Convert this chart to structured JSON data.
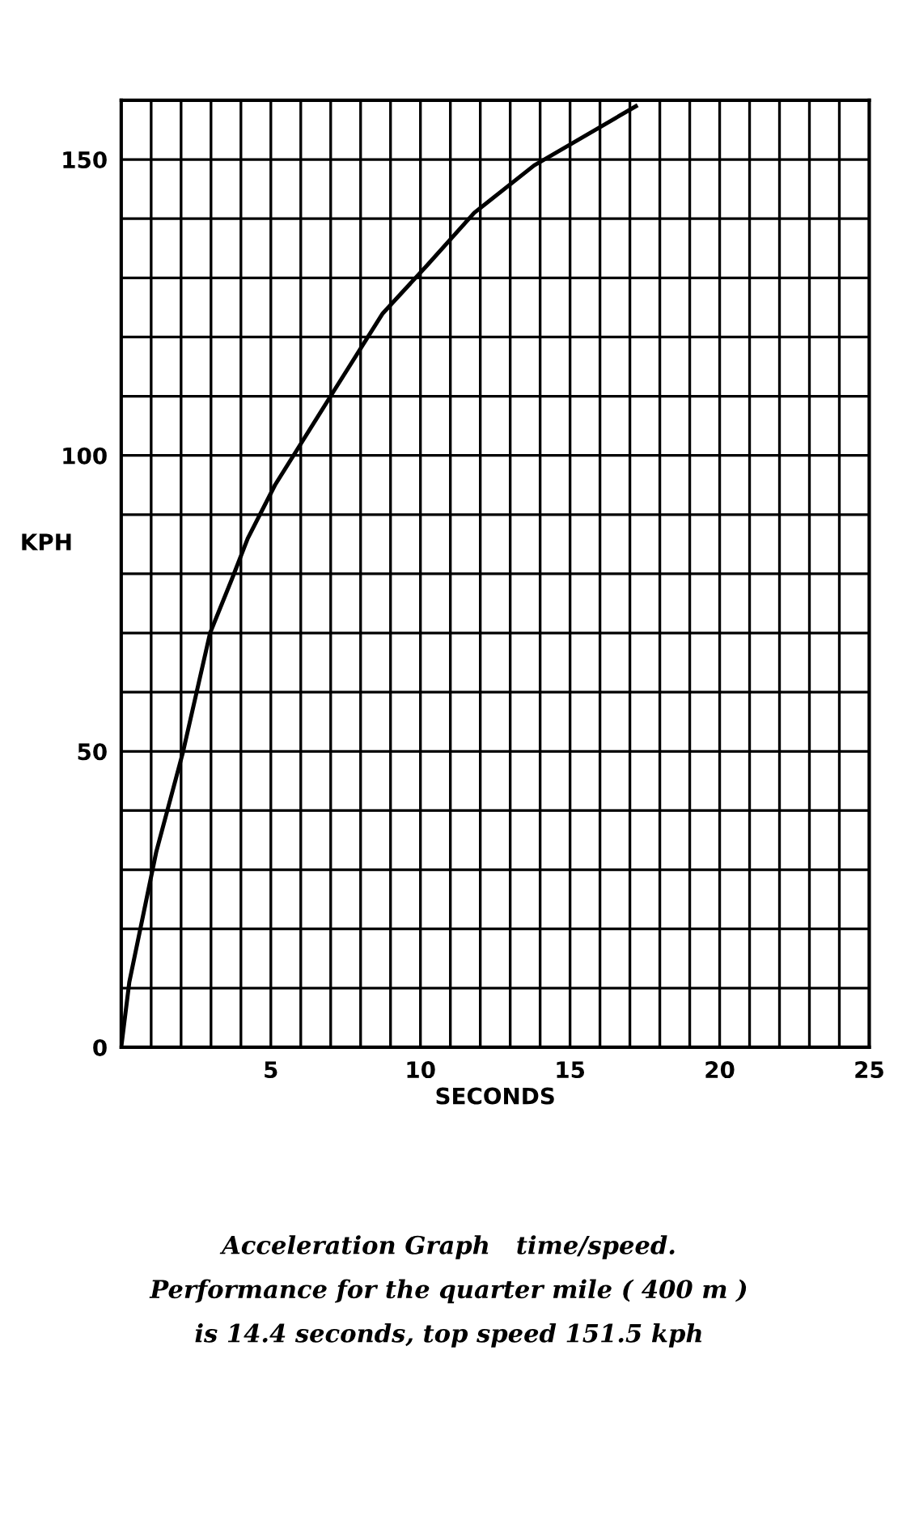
{
  "chart_data": {
    "type": "line",
    "xlabel": "SECONDS",
    "ylabel": "KPH",
    "series": [
      {
        "color": "#000000",
        "x": [
          0,
          0.27,
          1.17,
          2.07,
          2.97,
          3.69,
          4.23,
          5.14,
          7.12,
          8.74,
          10.2,
          11.8,
          13.8,
          15.5,
          17.2
        ],
        "values": [
          0,
          11,
          33,
          50,
          70,
          79,
          86,
          95,
          111,
          124,
          132,
          141,
          149,
          154,
          159
        ]
      }
    ],
    "xlim": [
      0,
      25
    ],
    "ylim": [
      0,
      160
    ],
    "xticks": [
      {
        "value": 1,
        "label": null
      },
      {
        "value": 2,
        "label": null
      },
      {
        "value": 3,
        "label": null
      },
      {
        "value": 4,
        "label": null
      },
      5,
      {
        "value": 6,
        "label": null
      },
      {
        "value": 7,
        "label": null
      },
      {
        "value": 8,
        "label": null
      },
      {
        "value": 9,
        "label": null
      },
      10,
      {
        "value": 11,
        "label": null
      },
      {
        "value": 12,
        "label": null
      },
      {
        "value": 13,
        "label": null
      },
      {
        "value": 14,
        "label": null
      },
      15,
      {
        "value": 16,
        "label": null
      },
      {
        "value": 17,
        "label": null
      },
      {
        "value": 18,
        "label": null
      },
      {
        "value": 19,
        "label": null
      },
      20,
      {
        "value": 21,
        "label": null
      },
      {
        "value": 22,
        "label": null
      },
      {
        "value": 23,
        "label": null
      },
      {
        "value": 24,
        "label": null
      },
      25
    ],
    "yticks": [
      0,
      {
        "value": 10,
        "label": null
      },
      {
        "value": 20,
        "label": null
      },
      {
        "value": 30,
        "label": null
      },
      {
        "value": 40,
        "label": null
      },
      50,
      {
        "value": 60,
        "label": null
      },
      {
        "value": 70,
        "label": null
      },
      {
        "value": 80,
        "label": null
      },
      {
        "value": 90,
        "label": null
      },
      100,
      {
        "value": 110,
        "label": null
      },
      {
        "value": 120,
        "label": null
      },
      {
        "value": 130,
        "label": null
      },
      {
        "value": 140,
        "label": null
      },
      150
    ],
    "grid": true,
    "marker": "none",
    "line_style": "solid",
    "annotations": [
      "Acceleration Graph   time/speed.",
      "Performance for the quarter mile ( 400 m )",
      "is 14.4 seconds, top speed 151.5 kph"
    ]
  }
}
